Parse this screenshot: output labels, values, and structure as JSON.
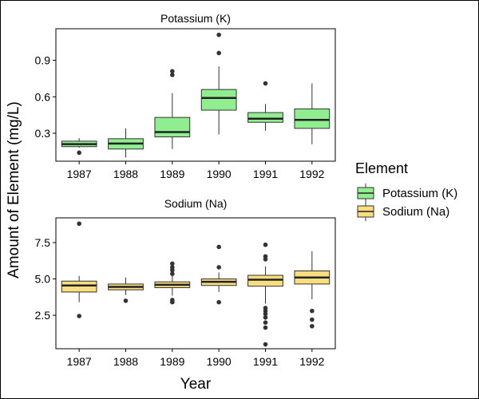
{
  "chart_data": {
    "type": "box",
    "xlabel": "Year",
    "ylabel": "Amount of Element (mg/L)",
    "categories": [
      "1987",
      "1988",
      "1989",
      "1990",
      "1991",
      "1992"
    ],
    "legend": {
      "title": "Element",
      "placement": "right",
      "entries": [
        {
          "label": "Potassium (K)",
          "color": "#90EE90"
        },
        {
          "label": "Sodium (Na)",
          "color": "#F8DE7E"
        }
      ]
    },
    "panels": [
      {
        "title": "Potassium (K)",
        "color": "#90EE90",
        "ylim": [
          0.07,
          1.16
        ],
        "yticks": [
          0.3,
          0.6,
          0.9
        ],
        "ytick_labels": [
          "0.3",
          "0.6",
          "0.9"
        ],
        "boxes": [
          {
            "category": "1987",
            "whisker_low": 0.18,
            "q1": 0.19,
            "median": 0.21,
            "q3": 0.235,
            "whisker_high": 0.26,
            "outliers": [
              0.14
            ]
          },
          {
            "category": "1988",
            "whisker_low": 0.1,
            "q1": 0.17,
            "median": 0.215,
            "q3": 0.255,
            "whisker_high": 0.34,
            "outliers": []
          },
          {
            "category": "1989",
            "whisker_low": 0.17,
            "q1": 0.27,
            "median": 0.31,
            "q3": 0.43,
            "whisker_high": 0.63,
            "outliers": [
              0.78,
              0.81
            ]
          },
          {
            "category": "1990",
            "whisker_low": 0.29,
            "q1": 0.49,
            "median": 0.59,
            "q3": 0.66,
            "whisker_high": 0.85,
            "outliers": [
              0.96,
              1.11
            ]
          },
          {
            "category": "1991",
            "whisker_low": 0.32,
            "q1": 0.39,
            "median": 0.42,
            "q3": 0.47,
            "whisker_high": 0.54,
            "outliers": [
              0.71
            ]
          },
          {
            "category": "1992",
            "whisker_low": 0.21,
            "q1": 0.34,
            "median": 0.41,
            "q3": 0.5,
            "whisker_high": 0.71,
            "outliers": []
          }
        ]
      },
      {
        "title": "Sodium (Na)",
        "color": "#F8DE7E",
        "ylim": [
          0.2,
          9.2
        ],
        "yticks": [
          2.5,
          5.0,
          7.5
        ],
        "ytick_labels": [
          "2.5",
          "5.0",
          "7.5"
        ],
        "boxes": [
          {
            "category": "1987",
            "whisker_low": 3.4,
            "q1": 4.1,
            "median": 4.55,
            "q3": 4.85,
            "whisker_high": 5.2,
            "outliers": [
              8.8,
              2.45
            ]
          },
          {
            "category": "1988",
            "whisker_low": 3.9,
            "q1": 4.25,
            "median": 4.45,
            "q3": 4.65,
            "whisker_high": 5.1,
            "outliers": [
              3.5
            ]
          },
          {
            "category": "1989",
            "whisker_low": 3.85,
            "q1": 4.4,
            "median": 4.6,
            "q3": 4.8,
            "whisker_high": 5.2,
            "outliers": [
              6.05,
              5.8,
              5.6,
              5.35,
              3.55,
              3.4
            ]
          },
          {
            "category": "1990",
            "whisker_low": 4.1,
            "q1": 4.55,
            "median": 4.8,
            "q3": 5.0,
            "whisker_high": 5.45,
            "outliers": [
              7.2,
              5.8,
              3.4
            ]
          },
          {
            "category": "1991",
            "whisker_low": 3.3,
            "q1": 4.5,
            "median": 4.95,
            "q3": 5.25,
            "whisker_high": 5.85,
            "outliers": [
              7.35,
              6.55,
              6.35,
              3.0,
              2.8,
              2.6,
              2.35,
              2.0,
              1.65,
              0.5
            ]
          },
          {
            "category": "1992",
            "whisker_low": 3.6,
            "q1": 4.65,
            "median": 5.1,
            "q3": 5.55,
            "whisker_high": 6.9,
            "outliers": [
              2.8,
              2.2,
              1.75
            ]
          }
        ]
      }
    ]
  }
}
